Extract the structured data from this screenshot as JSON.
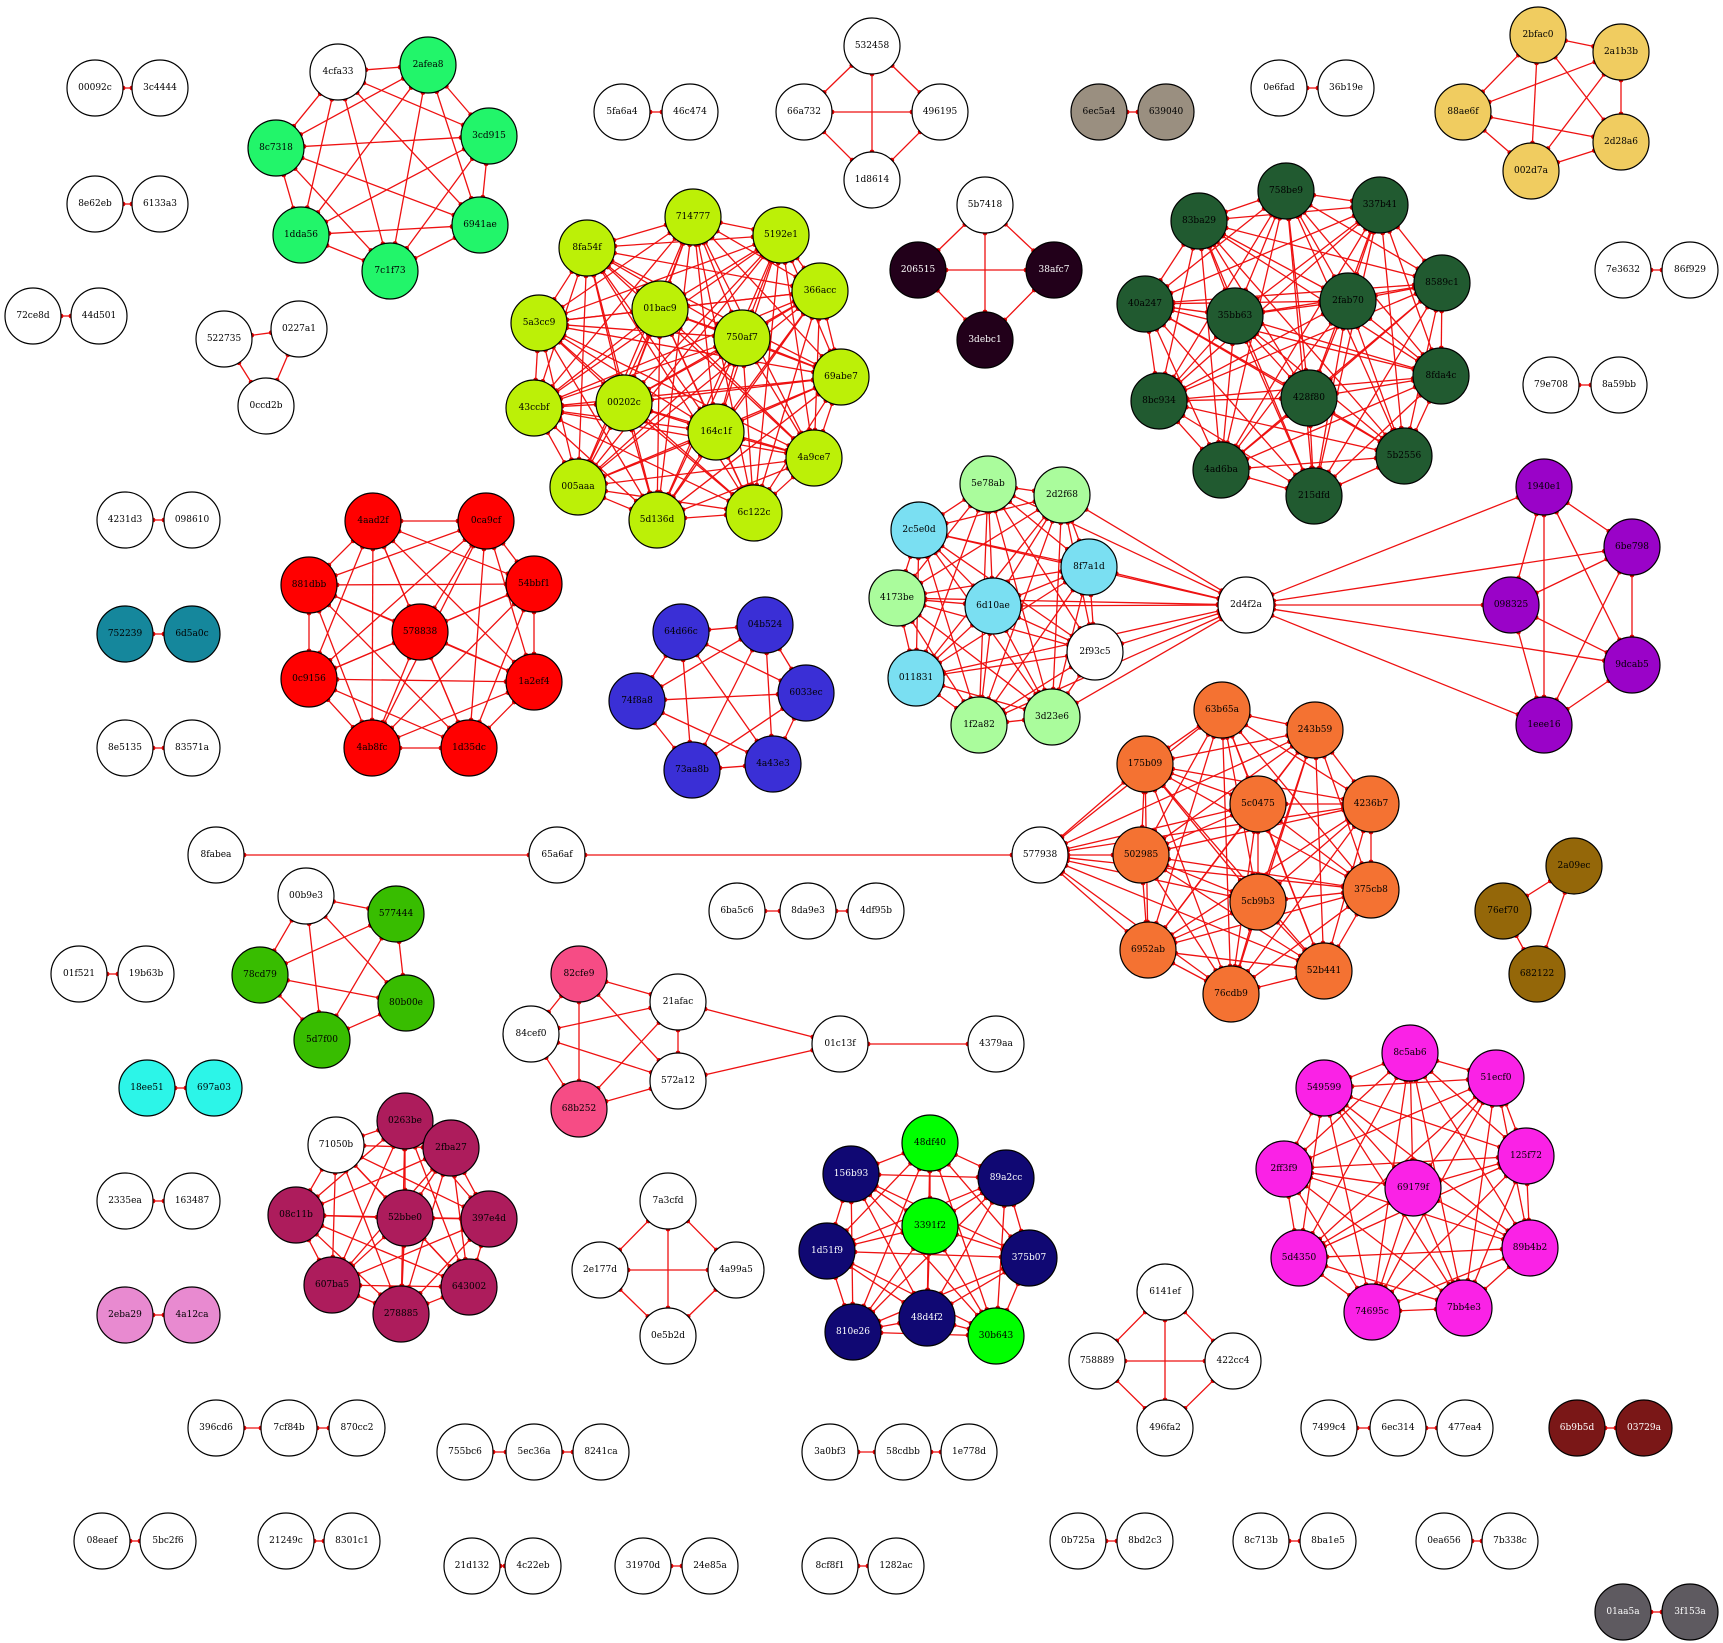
{
  "groups": [
    {
      "color": "#ffffff",
      "text": "#000000",
      "nodes": [
        "00092c",
        "3c4444"
      ],
      "edges": "ring"
    },
    {
      "color": "#ffffff",
      "text": "#000000",
      "nodes": [
        "8e62eb",
        "6133a3"
      ],
      "edges": "ring"
    },
    {
      "color": "#ffffff",
      "text": "#000000",
      "nodes": [
        "72ce8d",
        "44d501"
      ],
      "edges": "ring"
    },
    {
      "color": "#ffffff",
      "text": "#000000",
      "nodes": [
        "5fa6a4",
        "46c474"
      ],
      "edges": "ring"
    },
    {
      "color": "#ffffff",
      "text": "#000000",
      "nodes": [
        "0e6fad",
        "36b19e"
      ],
      "edges": "ring"
    },
    {
      "color": "#ffffff",
      "text": "#000000",
      "nodes": [
        "7e3632",
        "86f929"
      ],
      "edges": "ring"
    },
    {
      "color": "#ffffff",
      "text": "#000000",
      "nodes": [
        "79e708",
        "8a59bb"
      ],
      "edges": "ring"
    },
    {
      "color": "#ffffff",
      "text": "#000000",
      "nodes": [
        "4231d3",
        "098610"
      ],
      "edges": "ring"
    },
    {
      "color": "#ffffff",
      "text": "#000000",
      "nodes": [
        "8e5135",
        "83571a"
      ],
      "edges": "ring"
    },
    {
      "color": "#ffffff",
      "text": "#000000",
      "nodes": [
        "01f521",
        "19b63b"
      ],
      "edges": "ring"
    },
    {
      "color": "#ffffff",
      "text": "#000000",
      "nodes": [
        "2335ea",
        "163487"
      ],
      "edges": "ring"
    },
    {
      "color": "#ffffff",
      "text": "#000000",
      "nodes": [
        "08eaef",
        "5bc2f6"
      ],
      "edges": "ring"
    },
    {
      "color": "#ffffff",
      "text": "#000000",
      "nodes": [
        "21249c",
        "8301c1"
      ],
      "edges": "ring"
    },
    {
      "color": "#ffffff",
      "text": "#000000",
      "nodes": [
        "21d132",
        "4c22eb"
      ],
      "edges": "ring"
    },
    {
      "color": "#ffffff",
      "text": "#000000",
      "nodes": [
        "31970d",
        "24e85a"
      ],
      "edges": "ring"
    },
    {
      "color": "#ffffff",
      "text": "#000000",
      "nodes": [
        "8cf8f1",
        "1282ac"
      ],
      "edges": "ring"
    },
    {
      "color": "#ffffff",
      "text": "#000000",
      "nodes": [
        "0b725a",
        "8bd2c3"
      ],
      "edges": "ring"
    },
    {
      "color": "#ffffff",
      "text": "#000000",
      "nodes": [
        "8c713b",
        "8ba1e5"
      ],
      "edges": "ring"
    },
    {
      "color": "#ffffff",
      "text": "#000000",
      "nodes": [
        "0ea656",
        "7b338c"
      ],
      "edges": "ring"
    },
    {
      "color": "#9a8f80",
      "text": "#000000",
      "nodes": [
        "6ec5a4",
        "639040"
      ],
      "edges": "ring"
    },
    {
      "color": "#15879c",
      "text": "#000000",
      "nodes": [
        "752239",
        "6d5a0c"
      ],
      "edges": "ring"
    },
    {
      "color": "#2cf5e8",
      "text": "#000000",
      "nodes": [
        "18ee51",
        "697a03"
      ],
      "edges": "ring"
    },
    {
      "color": "#e88ad0",
      "text": "#000000",
      "nodes": [
        "2eba29",
        "4a12ca"
      ],
      "edges": "ring"
    },
    {
      "color": "#7a1717",
      "text": "#ffffff",
      "nodes": [
        "6b9b5d",
        "03729a"
      ],
      "edges": "ring"
    },
    {
      "color": "#5e5a60",
      "text": "#ffffff",
      "nodes": [
        "01aa5a",
        "3f153a"
      ],
      "edges": "ring"
    },
    {
      "color": "#ffffff",
      "text": "#000000",
      "nodes": [
        "396cd6",
        "7cf84b",
        "870cc2"
      ],
      "edges": "chain"
    },
    {
      "color": "#ffffff",
      "text": "#000000",
      "nodes": [
        "755bc6",
        "5ec36a",
        "8241ca"
      ],
      "edges": "chain"
    },
    {
      "color": "#ffffff",
      "text": "#000000",
      "nodes": [
        "3a0bf3",
        "58cdbb",
        "1e778d"
      ],
      "edges": "chain"
    },
    {
      "color": "#ffffff",
      "text": "#000000",
      "nodes": [
        "7499c4",
        "6ec314",
        "477ea4"
      ],
      "edges": "chain"
    },
    {
      "color": "#ffffff",
      "text": "#000000",
      "nodes": [
        "6ba5c6",
        "8da9e3",
        "4df95b"
      ],
      "edges": "chain"
    },
    {
      "color": "#ffffff",
      "text": "#000000",
      "nodes": [
        "522735",
        "0227a1",
        "0ccd2b"
      ],
      "edges": "complete"
    },
    {
      "color": "#ffffff",
      "text": "#000000",
      "nodes": [
        "532458",
        "66a732",
        "496195",
        "1d8614"
      ],
      "edges": "complete"
    },
    {
      "color": "#ffffff",
      "text": "#000000",
      "nodes": [
        "7a3cfd",
        "2e177d",
        "4a99a5",
        "0e5b2d"
      ],
      "edges": "complete"
    },
    {
      "color": "#ffffff",
      "text": "#000000",
      "nodes": [
        "6141ef",
        "758889",
        "422cc4",
        "496fa2"
      ],
      "edges": "complete"
    },
    {
      "color": "#22001a",
      "text": "#ffffff",
      "nodes": [
        "206515",
        "38afc7",
        "3debc1"
      ],
      "edges": "complete",
      "extra": [
        "5b7418"
      ]
    },
    {
      "color": "#f0cc60",
      "text": "#000000",
      "nodes": [
        "2bfac0",
        "2a1b3b",
        "88ae6f",
        "2d28a6",
        "002d7a"
      ],
      "edges": "complete"
    },
    {
      "color": "#946709",
      "text": "#000000",
      "nodes": [
        "76ef70",
        "2a09ec",
        "682122"
      ],
      "edges": "complete"
    },
    {
      "color": "#22f56a",
      "text": "#000000",
      "nodes": [
        "2afea8",
        "8c7318",
        "3cd915",
        "1dda56",
        "6941ae",
        "7c1f73"
      ],
      "edges": "complete",
      "extra": [
        "4cfa33"
      ]
    },
    {
      "color": "#bcf007",
      "text": "#000000",
      "nodes": [
        "714777",
        "8fa54f",
        "5192e1",
        "366acc",
        "01bac9",
        "5a3cc9",
        "750af7",
        "69abe7",
        "43ccbf",
        "00202c",
        "164c1f",
        "4a9ce7",
        "005aaa",
        "5d136d",
        "6c122c"
      ],
      "edges": "complete"
    },
    {
      "color": "#215a30",
      "text": "#000000",
      "nodes": [
        "758be9",
        "83ba29",
        "337b41",
        "40a247",
        "35bb63",
        "2fab70",
        "8589c1",
        "8bc934",
        "428f80",
        "8fda4c",
        "4ad6ba",
        "5b2556",
        "215dfd"
      ],
      "edges": "complete"
    },
    {
      "color": "#ff0000",
      "text": "#000000",
      "nodes": [
        "4aad2f",
        "0ca9cf",
        "881dbb",
        "54bbf1",
        "578838",
        "0c9156",
        "1a2ef4",
        "4ab8fc",
        "1d35dc"
      ],
      "edges": "complete"
    },
    {
      "color": "#3a2fd6",
      "text": "#000000",
      "nodes": [
        "64d66c",
        "04b524",
        "74f8a8",
        "6033ec",
        "73aa8b",
        "4a43e3"
      ],
      "edges": "complete"
    },
    {
      "color": "#aafc9c",
      "text": "#000000",
      "nodes": [
        "5e78ab",
        "2d2f68",
        "4173be",
        "1f2a82",
        "3d23e6"
      ],
      "edges": "complete",
      "link": [
        "2c5e0d",
        "8f7a1d",
        "6d10ae",
        "011831",
        "2f93c5"
      ]
    },
    {
      "color": "#7adff2",
      "text": "#000000",
      "nodes": [
        "2c5e0d",
        "8f7a1d",
        "6d10ae",
        "011831"
      ],
      "edges": "complete",
      "extra": [
        "2f93c5"
      ]
    },
    {
      "color": "#9a03c8",
      "text": "#000000",
      "nodes": [
        "1940e1",
        "6be798",
        "098325",
        "9dcab5",
        "1eee16"
      ],
      "edges": "complete"
    },
    {
      "color": "#f47232",
      "text": "#000000",
      "nodes": [
        "63b65a",
        "243b59",
        "175b09",
        "5c0475",
        "4236b7",
        "502985",
        "375cb8",
        "5cb9b3",
        "6952ab",
        "52b441",
        "76cdb9"
      ],
      "edges": "complete",
      "extra": [
        "577938"
      ]
    },
    {
      "color": "#38bd00",
      "text": "#000000",
      "nodes": [
        "577444",
        "78cd79",
        "80b00e",
        "5d7f00"
      ],
      "edges": "complete",
      "extra": [
        "00b9e3"
      ]
    },
    {
      "color": "#f64c85",
      "text": "#000000",
      "nodes": [
        "82cfe9",
        "68b252"
      ],
      "edges": "complete",
      "extra": [
        "21afac",
        "84cef0",
        "572a12"
      ]
    },
    {
      "color": "#ad1c5c",
      "text": "#000000",
      "nodes": [
        "0263be",
        "2fba27",
        "08c11b",
        "52bbe0",
        "397e4d",
        "607ba5",
        "643002",
        "278885"
      ],
      "edges": "complete",
      "extra": [
        "71050b"
      ]
    },
    {
      "color": "#100873",
      "text": "#ffffff",
      "nodes": [
        "156b93",
        "89a2cc",
        "1d51f9",
        "375b07",
        "810e26",
        "48d4f2"
      ],
      "edges": "complete",
      "link": [
        "48df40",
        "3391f2",
        "30b643"
      ]
    },
    {
      "color": "#00ff00",
      "text": "#000000",
      "nodes": [
        "48df40",
        "3391f2",
        "30b643"
      ],
      "edges": "none"
    },
    {
      "color": "#fa22e6",
      "text": "#000000",
      "nodes": [
        "8c5ab6",
        "51ecf0",
        "549599",
        "125f72",
        "2ff3f9",
        "69179f",
        "5d4350",
        "89b4b2",
        "74695c",
        "7bb4e3"
      ],
      "edges": "complete"
    },
    {
      "color": "#ffffff",
      "text": "#000000",
      "nodes": [
        "2d4f2a",
        "8fabea",
        "65a6af",
        "01c13f",
        "4379aa"
      ],
      "edges": "none"
    }
  ],
  "bridges": [
    [
      "8fabea",
      "65a6af"
    ],
    [
      "65a6af",
      "577938"
    ],
    [
      "2d4f2a",
      "5e78ab"
    ],
    [
      "2d4f2a",
      "2d2f68"
    ],
    [
      "2d4f2a",
      "8f7a1d"
    ],
    [
      "2d4f2a",
      "6d10ae"
    ],
    [
      "2d4f2a",
      "2f93c5"
    ],
    [
      "2d4f2a",
      "3d23e6"
    ],
    [
      "2d4f2a",
      "1f2a82"
    ],
    [
      "2d4f2a",
      "4173be"
    ],
    [
      "2d4f2a",
      "2c5e0d"
    ],
    [
      "2d4f2a",
      "011831"
    ],
    [
      "2d4f2a",
      "1940e1"
    ],
    [
      "2d4f2a",
      "6be798"
    ],
    [
      "2d4f2a",
      "098325"
    ],
    [
      "2d4f2a",
      "9dcab5"
    ],
    [
      "2d4f2a",
      "1eee16"
    ],
    [
      "21afac",
      "01c13f"
    ],
    [
      "572a12",
      "01c13f"
    ],
    [
      "01c13f",
      "4379aa"
    ],
    [
      "21afac",
      "572a12"
    ],
    [
      "84cef0",
      "21afac"
    ],
    [
      "84cef0",
      "572a12"
    ]
  ]
}
